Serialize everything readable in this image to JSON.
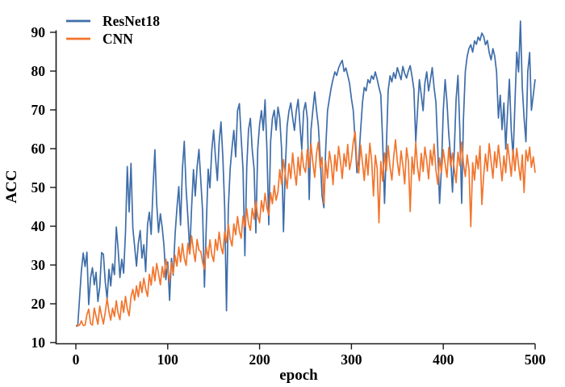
{
  "chart_data": {
    "type": "line",
    "title": "",
    "xlabel": "epoch",
    "ylabel": "ACC",
    "x_ticks": [
      0,
      100,
      200,
      300,
      400,
      500
    ],
    "y_ticks": [
      10,
      20,
      30,
      40,
      50,
      60,
      70,
      80,
      90
    ],
    "xlim": [
      -22,
      500
    ],
    "ylim": [
      10,
      93.5
    ],
    "grid": false,
    "legend_position": "upper-left",
    "axis_color": "#1a1a1a",
    "epoch_start": 0,
    "epoch_step": 2,
    "series": [
      {
        "name": "ResNet18",
        "color": "#3e6da9",
        "values": [
          14.2,
          14.3,
          21.5,
          28.4,
          33.1,
          29.6,
          33.3,
          19.8,
          26.7,
          29.3,
          24.9,
          28.1,
          20.6,
          24.4,
          33.2,
          32.8,
          25.7,
          21.2,
          28.9,
          24.6,
          30.3,
          27.5,
          39.8,
          34.2,
          26.8,
          31.5,
          27.9,
          38.6,
          55.4,
          43.7,
          56.2,
          39.5,
          34.8,
          29.7,
          35.6,
          38.9,
          31.8,
          35.2,
          28.3,
          40.4,
          43.6,
          37.9,
          49.8,
          59.7,
          45.9,
          38.4,
          43.2,
          39.6,
          34.9,
          26.2,
          30.8,
          20.9,
          31.7,
          27.4,
          37.8,
          44.6,
          50.2,
          40.3,
          54.8,
          61.9,
          49.6,
          42.3,
          33.4,
          44.9,
          54.6,
          47.8,
          55.3,
          59.8,
          51.7,
          43.9,
          24.3,
          40.2,
          54.7,
          49.9,
          59.6,
          64.8,
          57.6,
          51.8,
          61.7,
          66.9,
          57.8,
          44.6,
          18.2,
          44.8,
          54.9,
          60.3,
          64.7,
          57.9,
          69.8,
          71.6,
          62.8,
          54.6,
          32.4,
          55.2,
          64.9,
          67.8,
          59.7,
          54.8,
          38.3,
          59.9,
          66.2,
          69.8,
          64.7,
          72.6,
          59.8,
          40.4,
          61.9,
          67.8,
          69.9,
          64.8,
          70.7,
          67.9,
          59.8,
          38.6,
          54.9,
          65.8,
          69.7,
          71.8,
          67.9,
          64.7,
          69.8,
          72.7,
          65.9,
          59.8,
          69.7,
          71.9,
          67.8,
          46.9,
          64.8,
          69.9,
          74.6,
          69.8,
          65.9,
          57.8,
          47.9,
          44.8,
          59.9,
          69.8,
          72.9,
          75.8,
          77.9,
          79.8,
          78.9,
          80.8,
          81.9,
          82.8,
          79.9,
          80.8,
          78.9,
          76.8,
          72.9,
          69.8,
          61.9,
          53.8,
          56.9,
          64.8,
          71.9,
          75.8,
          74.9,
          77.8,
          76.9,
          78.8,
          77.9,
          79.8,
          77.9,
          75.8,
          73.9,
          61.8,
          45.9,
          59.8,
          74.9,
          78.8,
          77.2,
          79.6,
          78.1,
          80.9,
          79.3,
          77.8,
          81.2,
          79.4,
          78.2,
          80.1,
          81.4,
          78.6,
          75.3,
          61.8,
          69.9,
          77.8,
          73.9,
          69.8,
          76.9,
          79.8,
          74.9,
          77.8,
          80.9,
          75.8,
          71.9,
          59.8,
          45.9,
          54.8,
          69.9,
          77.8,
          71.9,
          63.8,
          57.9,
          48.8,
          59.9,
          72.8,
          78.9,
          64.8,
          45.9,
          67.8,
          79.9,
          83.8,
          85.9,
          86.8,
          84.9,
          87.8,
          86.9,
          88.8,
          87.9,
          89.8,
          88.9,
          86.8,
          87.9,
          84.8,
          82.9,
          85.8,
          83.9,
          79.8,
          67.9,
          73.8,
          64.9,
          71.8,
          59.9,
          69.8,
          77.9,
          64.8,
          57.9,
          71.8,
          84.9,
          79.8,
          92.9,
          75.8,
          67.9,
          61.8,
          79.9,
          84.8,
          69.9,
          73.8,
          77.9
        ]
      },
      {
        "name": "CNN",
        "color": "#f2752d",
        "values": [
          14.4,
          14.4,
          14.5,
          15.6,
          14.4,
          14.5,
          17.2,
          18.6,
          14.9,
          14.5,
          18.9,
          16.8,
          14.7,
          19.4,
          16.9,
          14.8,
          17.8,
          21.4,
          17.9,
          15.8,
          18.9,
          16.7,
          20.8,
          17.6,
          15.9,
          20.7,
          17.8,
          21.9,
          18.7,
          16.9,
          21.8,
          23.7,
          20.9,
          24.6,
          21.8,
          25.7,
          22.9,
          26.6,
          23.8,
          21.9,
          27.6,
          24.8,
          29.5,
          25.9,
          30.4,
          27.8,
          24.9,
          29.6,
          26.8,
          31.5,
          28.7,
          25.9,
          30.6,
          27.8,
          32.5,
          29.7,
          34.6,
          30.8,
          35.5,
          31.7,
          29.9,
          35.6,
          32.8,
          37.5,
          33.7,
          30.9,
          36.6,
          33.8,
          33.5,
          30.7,
          28.9,
          34.6,
          31.8,
          36.5,
          32.7,
          30.9,
          36.6,
          33.8,
          38.5,
          34.7,
          32.9,
          38.6,
          35.8,
          40.5,
          36.7,
          34.9,
          40.6,
          37.8,
          42.5,
          38.7,
          36.9,
          42.6,
          39.8,
          44.5,
          40.7,
          38.9,
          44.6,
          41.8,
          46.5,
          42.7,
          40.9,
          46.6,
          43.8,
          48.5,
          44.7,
          42.9,
          48.6,
          45.8,
          50.5,
          46.7,
          48.9,
          54.6,
          50.8,
          57.2,
          53.4,
          49.7,
          56.1,
          52.3,
          58.9,
          54.2,
          50.6,
          57.8,
          53.1,
          59.4,
          55.3,
          53.9,
          59.8,
          55.2,
          61.3,
          56.4,
          52.6,
          58.9,
          61.7,
          55.1,
          57.8,
          45.9,
          56.8,
          52.4,
          59.3,
          56.1,
          50.7,
          58.4,
          54.2,
          60.6,
          56.9,
          52.3,
          58.7,
          55.4,
          61.1,
          54.6,
          57.3,
          61.8,
          64.4,
          56.2,
          53.7,
          60.9,
          56.3,
          51.8,
          58.6,
          53.2,
          61.4,
          57.1,
          47.8,
          58.3,
          54.9,
          40.9,
          56.7,
          51.6,
          58.9,
          54.3,
          60.8,
          55.2,
          51.9,
          57.7,
          62.3,
          56.6,
          53.1,
          59.4,
          55.8,
          50.9,
          60.2,
          56.7,
          43.8,
          57.9,
          53.4,
          61.6,
          55.3,
          51.7,
          58.8,
          54.1,
          60.4,
          56.9,
          52.2,
          59.6,
          55.7,
          61.2,
          54.4,
          50.8,
          57.6,
          53.9,
          59.7,
          56.1,
          52.6,
          60.3,
          55.4,
          58.9,
          54.7,
          51.2,
          59.1,
          55.6,
          61.7,
          56.2,
          52.8,
          58.4,
          54.6,
          39.9,
          56.4,
          51.9,
          58.2,
          54.8,
          60.7,
          45.6,
          53.3,
          58.6,
          54.2,
          61.3,
          56.8,
          52.4,
          59.2,
          55.1,
          60.9,
          56.3,
          51.7,
          58.1,
          53.8,
          61.2,
          57.4,
          52.9,
          59.8,
          54.3,
          60.1,
          55.7,
          51.9,
          58.4,
          48.7,
          59.6,
          56.8,
          60.4,
          55.2,
          57.9,
          53.8
        ]
      }
    ]
  }
}
